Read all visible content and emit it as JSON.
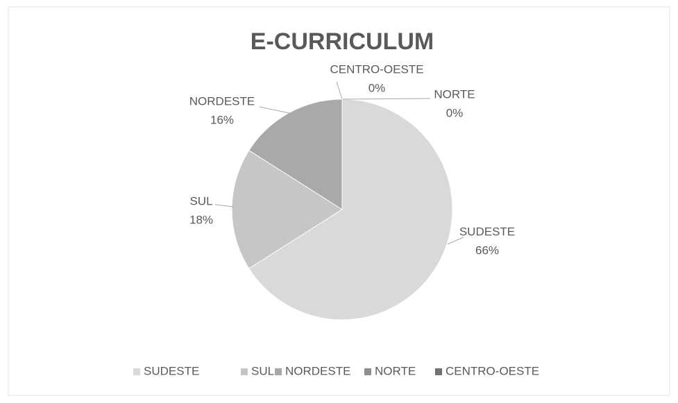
{
  "chart_data": {
    "type": "pie",
    "title": "E-CURRICULUM",
    "categories": [
      "SUDESTE",
      "SUL",
      "NORDESTE",
      "NORTE",
      "CENTRO-OESTE"
    ],
    "values": [
      66,
      18,
      16,
      0,
      0
    ],
    "value_labels": [
      "66%",
      "18%",
      "16%",
      "0%",
      "0%"
    ],
    "colors": [
      "#d9d9d9",
      "#c6c6c6",
      "#a9a9a9",
      "#8e8e8e",
      "#727272"
    ],
    "legend": "bottom"
  }
}
